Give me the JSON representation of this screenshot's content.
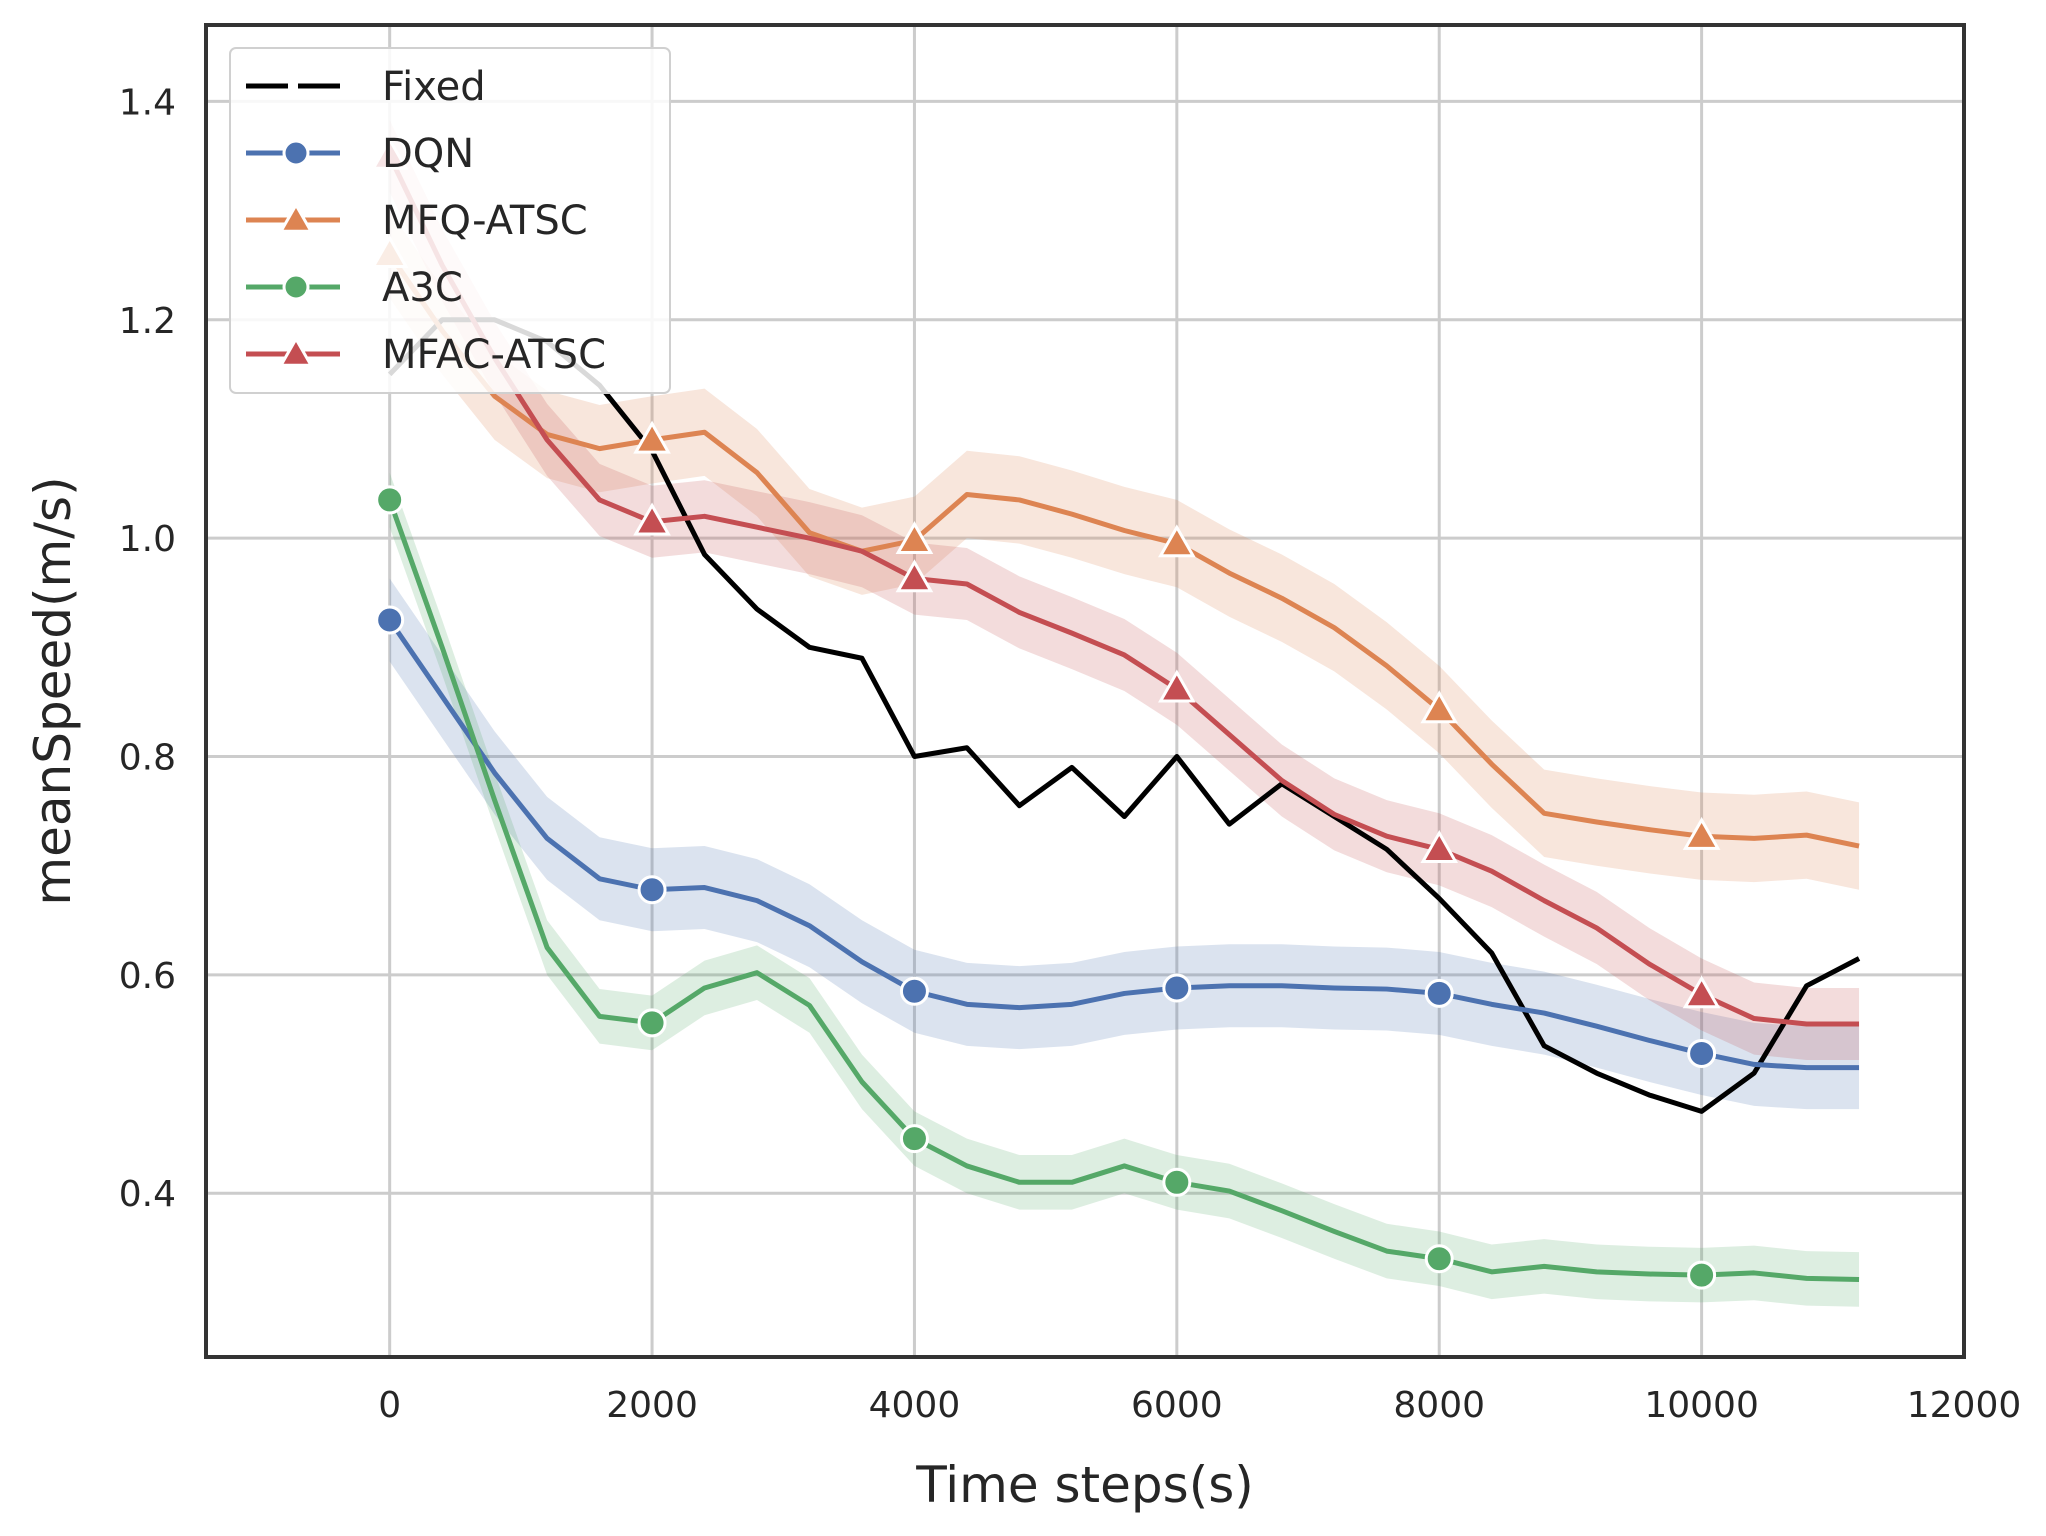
{
  "chart_data": {
    "type": "line",
    "title": "",
    "xlabel": "Time steps(s)",
    "ylabel": "meanSpeed(m/s)",
    "xlim": [
      -1400,
      12000
    ],
    "ylim": [
      0.25,
      1.47
    ],
    "xticks": [
      0,
      2000,
      4000,
      6000,
      8000,
      10000,
      12000
    ],
    "xtick_labels": [
      "0",
      "2000",
      "4000",
      "6000",
      "8000",
      "10000",
      "12000"
    ],
    "yticks": [
      0.4,
      0.6,
      0.8,
      1.0,
      1.2,
      1.4
    ],
    "ytick_labels": [
      "0.4",
      "0.6",
      "0.8",
      "1.0",
      "1.2",
      "1.4"
    ],
    "grid": true,
    "legend_position": "top-left",
    "series": [
      {
        "name": "Fixed",
        "color": "#000000",
        "marker": "none",
        "band": 0,
        "x": [
          0,
          400,
          800,
          1200,
          1600,
          2000,
          2400,
          2800,
          3200,
          3600,
          4000,
          4400,
          4800,
          5200,
          5600,
          6000,
          6400,
          6800,
          7200,
          7600,
          8000,
          8400,
          8800,
          9200,
          9600,
          10000,
          10400,
          10800,
          11200
        ],
        "y": [
          1.15,
          1.2,
          1.2,
          1.18,
          1.14,
          1.08,
          0.985,
          0.935,
          0.9,
          0.89,
          0.8,
          0.808,
          0.755,
          0.79,
          0.745,
          0.8,
          0.738,
          0.775,
          0.745,
          0.715,
          0.67,
          0.62,
          0.535,
          0.51,
          0.49,
          0.475,
          0.51,
          0.59,
          0.615
        ]
      },
      {
        "name": "DQN",
        "color": "#4c72b0",
        "marker": "circle",
        "band": 0.038,
        "x": [
          0,
          400,
          800,
          1200,
          1600,
          2000,
          2400,
          2800,
          3200,
          3600,
          4000,
          4400,
          4800,
          5200,
          5600,
          6000,
          6400,
          6800,
          7200,
          7600,
          8000,
          8400,
          8800,
          9200,
          9600,
          10000,
          10400,
          10800,
          11200
        ],
        "y": [
          0.925,
          0.855,
          0.785,
          0.725,
          0.688,
          0.678,
          0.68,
          0.668,
          0.645,
          0.612,
          0.585,
          0.573,
          0.57,
          0.573,
          0.583,
          0.588,
          0.59,
          0.59,
          0.588,
          0.587,
          0.583,
          0.573,
          0.565,
          0.553,
          0.54,
          0.528,
          0.518,
          0.515,
          0.515
        ]
      },
      {
        "name": "MFQ-ATSC",
        "color": "#dd8452",
        "marker": "triangle",
        "band": 0.04,
        "x": [
          0,
          400,
          800,
          1200,
          1600,
          2000,
          2400,
          2800,
          3200,
          3600,
          4000,
          4400,
          4800,
          5200,
          5600,
          6000,
          6400,
          6800,
          7200,
          7600,
          8000,
          8400,
          8800,
          9200,
          9600,
          10000,
          10400,
          10800,
          11200
        ],
        "y": [
          1.26,
          1.19,
          1.13,
          1.095,
          1.082,
          1.09,
          1.097,
          1.06,
          1.005,
          0.988,
          0.998,
          1.04,
          1.035,
          1.022,
          1.007,
          0.995,
          0.968,
          0.945,
          0.918,
          0.883,
          0.843,
          0.793,
          0.748,
          0.74,
          0.733,
          0.727,
          0.725,
          0.728,
          0.718
        ]
      },
      {
        "name": "A3C",
        "color": "#55a868",
        "marker": "circle",
        "band": 0.025,
        "x": [
          0,
          400,
          800,
          1200,
          1600,
          2000,
          2400,
          2800,
          3200,
          3600,
          4000,
          4400,
          4800,
          5200,
          5600,
          6000,
          6400,
          6800,
          7200,
          7600,
          8000,
          8400,
          8800,
          9200,
          9600,
          10000,
          10400,
          10800,
          11200
        ],
        "y": [
          1.035,
          0.9,
          0.76,
          0.625,
          0.562,
          0.556,
          0.588,
          0.602,
          0.572,
          0.502,
          0.45,
          0.425,
          0.41,
          0.41,
          0.425,
          0.41,
          0.402,
          0.384,
          0.365,
          0.347,
          0.34,
          0.328,
          0.333,
          0.328,
          0.326,
          0.325,
          0.327,
          0.322,
          0.321
        ]
      },
      {
        "name": "MFAC-ATSC",
        "color": "#c44e52",
        "marker": "triangle",
        "band": 0.033,
        "x": [
          0,
          400,
          800,
          1200,
          1600,
          2000,
          2400,
          2800,
          3200,
          3600,
          4000,
          4400,
          4800,
          5200,
          5600,
          6000,
          6400,
          6800,
          7200,
          7600,
          8000,
          8400,
          8800,
          9200,
          9600,
          10000,
          10400,
          10800,
          11200
        ],
        "y": [
          1.35,
          1.25,
          1.165,
          1.09,
          1.035,
          1.015,
          1.02,
          1.01,
          1.0,
          0.988,
          0.963,
          0.958,
          0.932,
          0.913,
          0.893,
          0.862,
          0.82,
          0.778,
          0.747,
          0.727,
          0.715,
          0.695,
          0.668,
          0.643,
          0.61,
          0.582,
          0.56,
          0.555,
          0.555
        ]
      }
    ]
  }
}
